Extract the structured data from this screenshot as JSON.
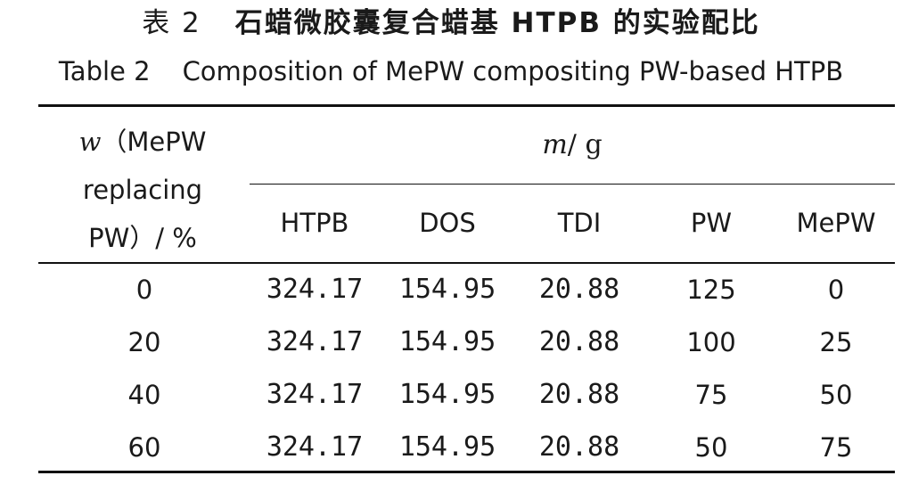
{
  "title": {
    "cn_label": "表 2",
    "cn_text": "石蜡微胶囊复合蜡基 HTPB 的实验配比",
    "en_label": "Table 2",
    "en_text": "Composition of MePW compositing PW-based HTPB"
  },
  "table": {
    "row_header": {
      "symbol": "w",
      "line1_rest": "（MePW",
      "line2": "replacing",
      "line3": "PW）/ %"
    },
    "unit_header": {
      "symbol": "m",
      "unit": "/ g"
    },
    "columns": [
      "HTPB",
      "DOS",
      "TDI",
      "PW",
      "MePW"
    ],
    "rows": [
      {
        "w": "0",
        "values": [
          "324.17",
          "154.95",
          "20.88",
          "125",
          "0"
        ]
      },
      {
        "w": "20",
        "values": [
          "324.17",
          "154.95",
          "20.88",
          "100",
          "25"
        ]
      },
      {
        "w": "40",
        "values": [
          "324.17",
          "154.95",
          "20.88",
          "75",
          "50"
        ]
      },
      {
        "w": "60",
        "values": [
          "324.17",
          "154.95",
          "20.88",
          "50",
          "75"
        ]
      }
    ]
  }
}
